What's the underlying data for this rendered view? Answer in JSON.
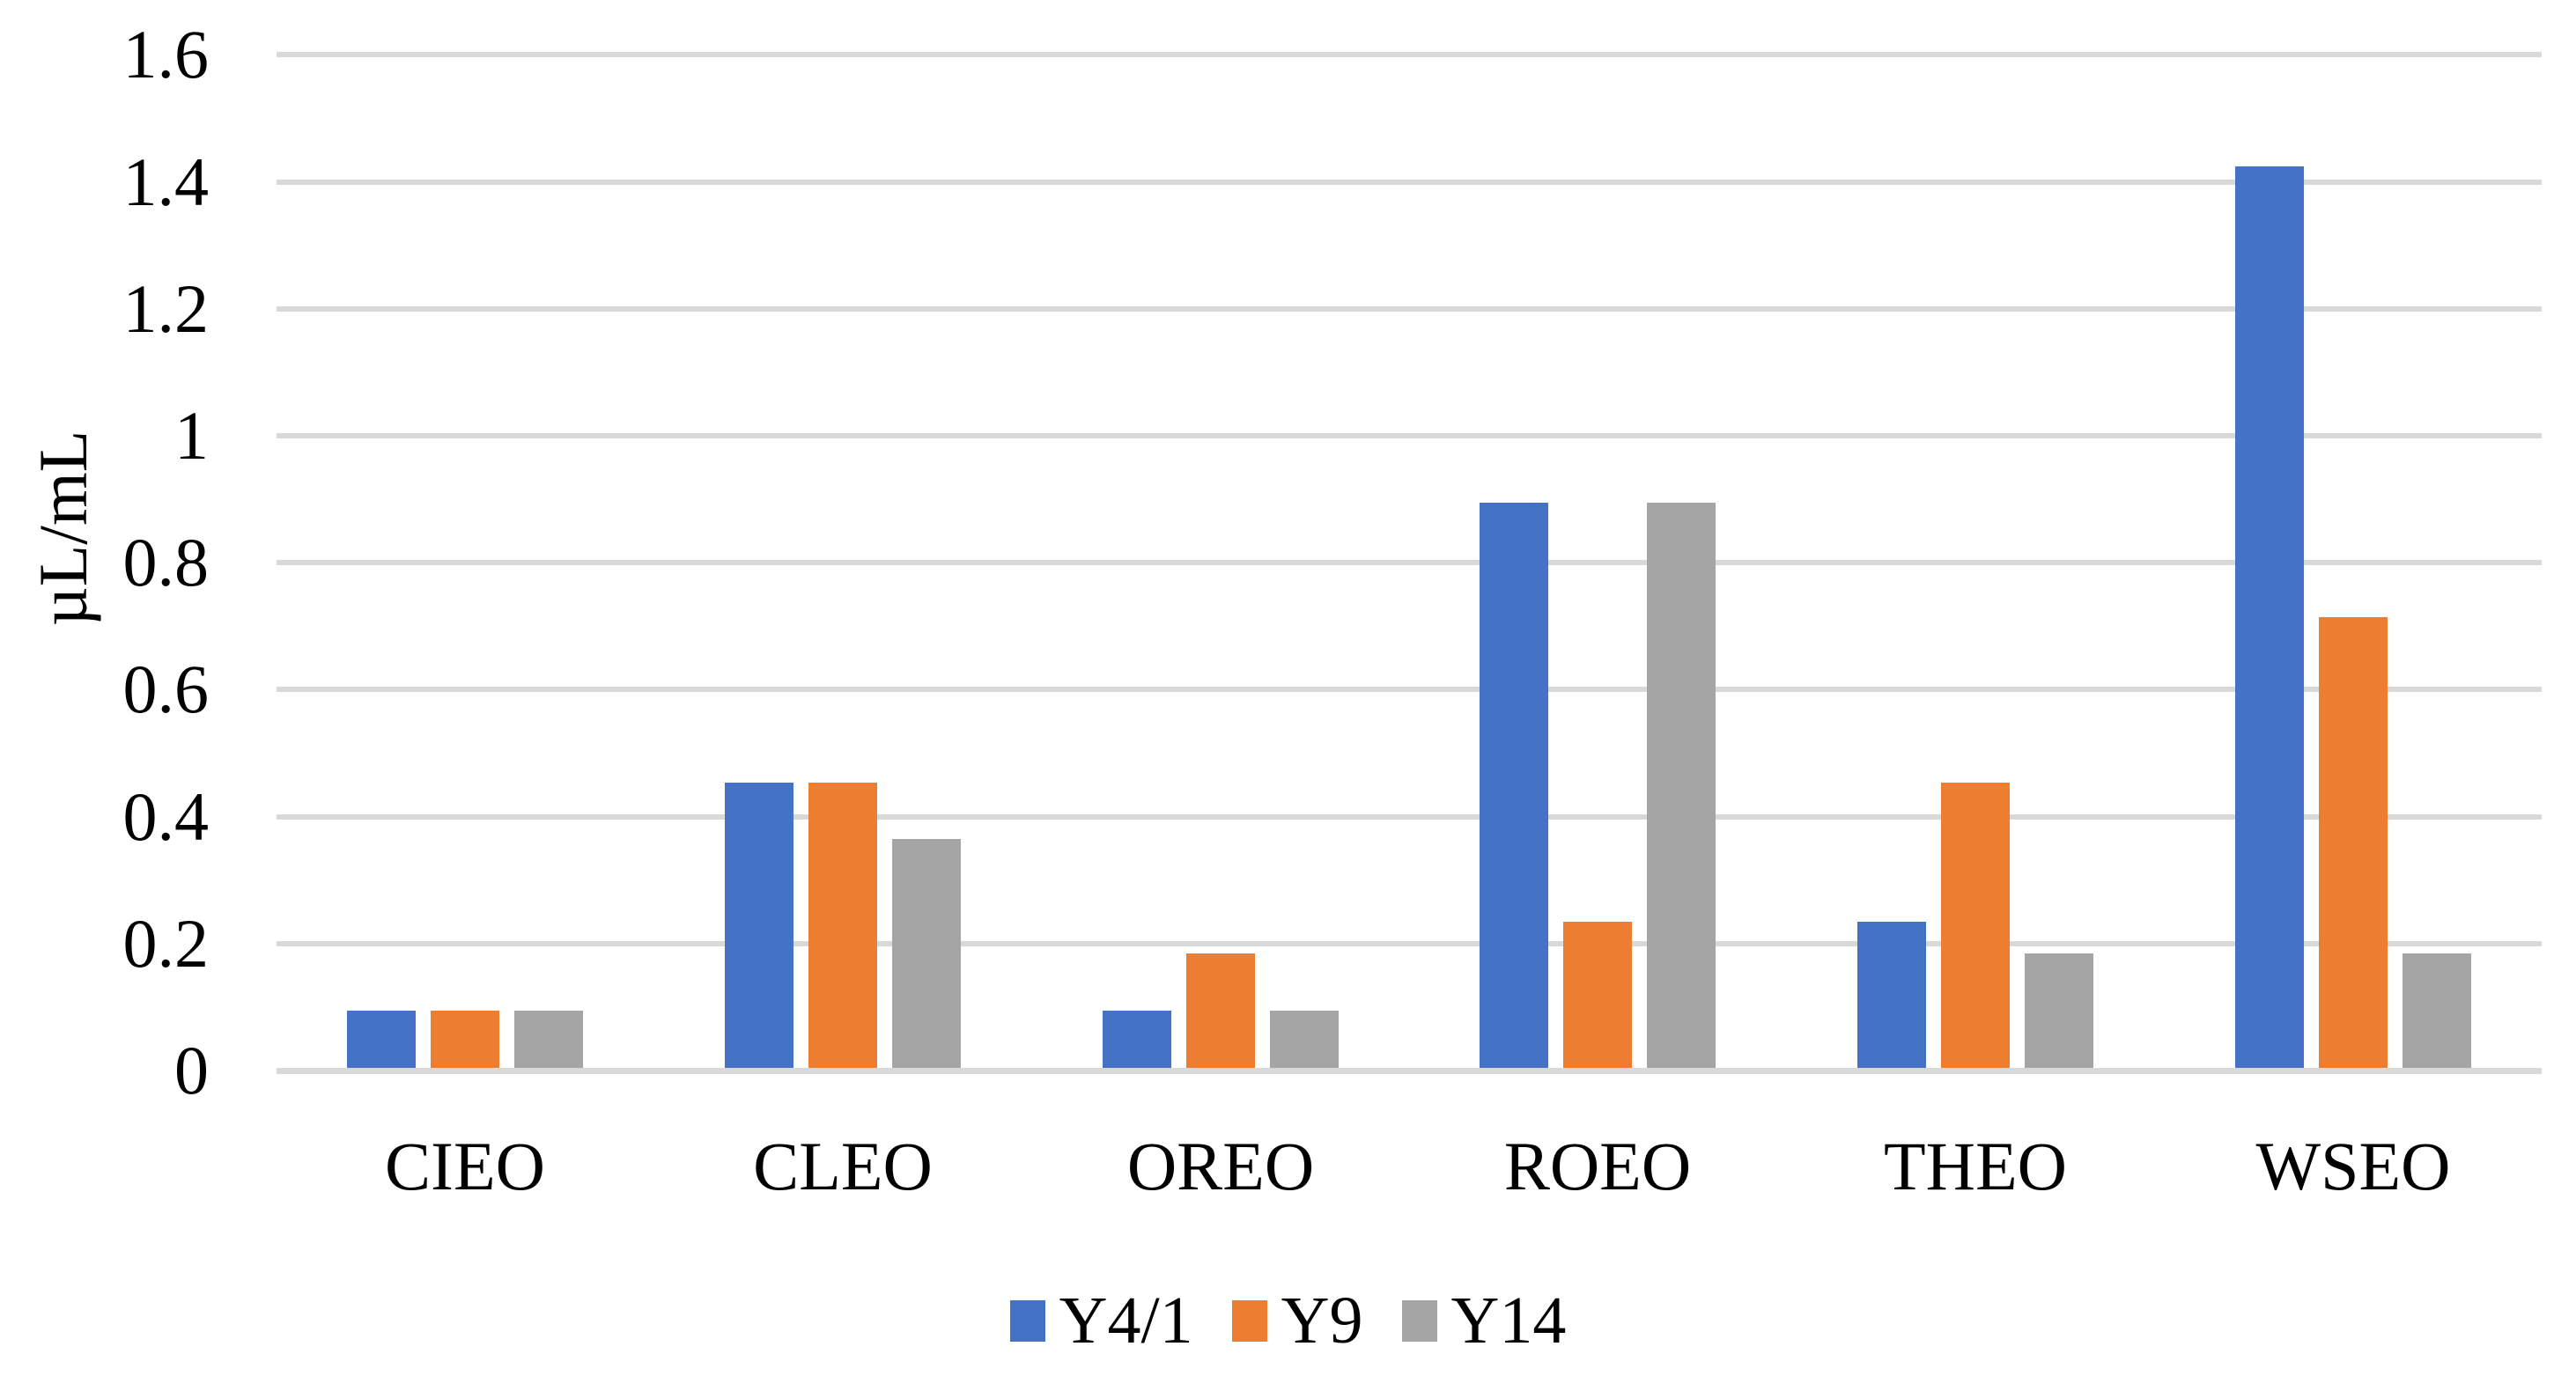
{
  "chart_data": {
    "type": "bar",
    "title": "",
    "xlabel": "",
    "ylabel": "µL/mL",
    "categories": [
      "CIEO",
      "CLEO",
      "OREO",
      "ROEO",
      "THEO",
      "WSEO"
    ],
    "series": [
      {
        "name": "Y4/1",
        "color": "#4472C4",
        "values": [
          0.09,
          0.45,
          0.09,
          0.89,
          0.23,
          1.42
        ]
      },
      {
        "name": "Y9",
        "color": "#ED7D31",
        "values": [
          0.09,
          0.45,
          0.18,
          0.23,
          0.45,
          0.71
        ]
      },
      {
        "name": "Y14",
        "color": "#A5A5A5",
        "values": [
          0.09,
          0.36,
          0.09,
          0.89,
          0.18,
          0.18
        ]
      }
    ],
    "ylim": [
      0,
      1.6
    ],
    "yticks": [
      {
        "value": 0,
        "label": "0"
      },
      {
        "value": 0.2,
        "label": "0.2"
      },
      {
        "value": 0.4,
        "label": "0.4"
      },
      {
        "value": 0.6,
        "label": "0.6"
      },
      {
        "value": 0.8,
        "label": "0.8"
      },
      {
        "value": 1,
        "label": "1"
      },
      {
        "value": 1.2,
        "label": "1.2"
      },
      {
        "value": 1.4,
        "label": "1.4"
      },
      {
        "value": 1.6,
        "label": "1.6"
      }
    ],
    "grid": true,
    "gridline_color": "#D9D9D9",
    "axis_line_color": "#D9D9D9",
    "background_color": "#FFFFFF",
    "text_color": "#000000",
    "legend_position": "bottom"
  }
}
